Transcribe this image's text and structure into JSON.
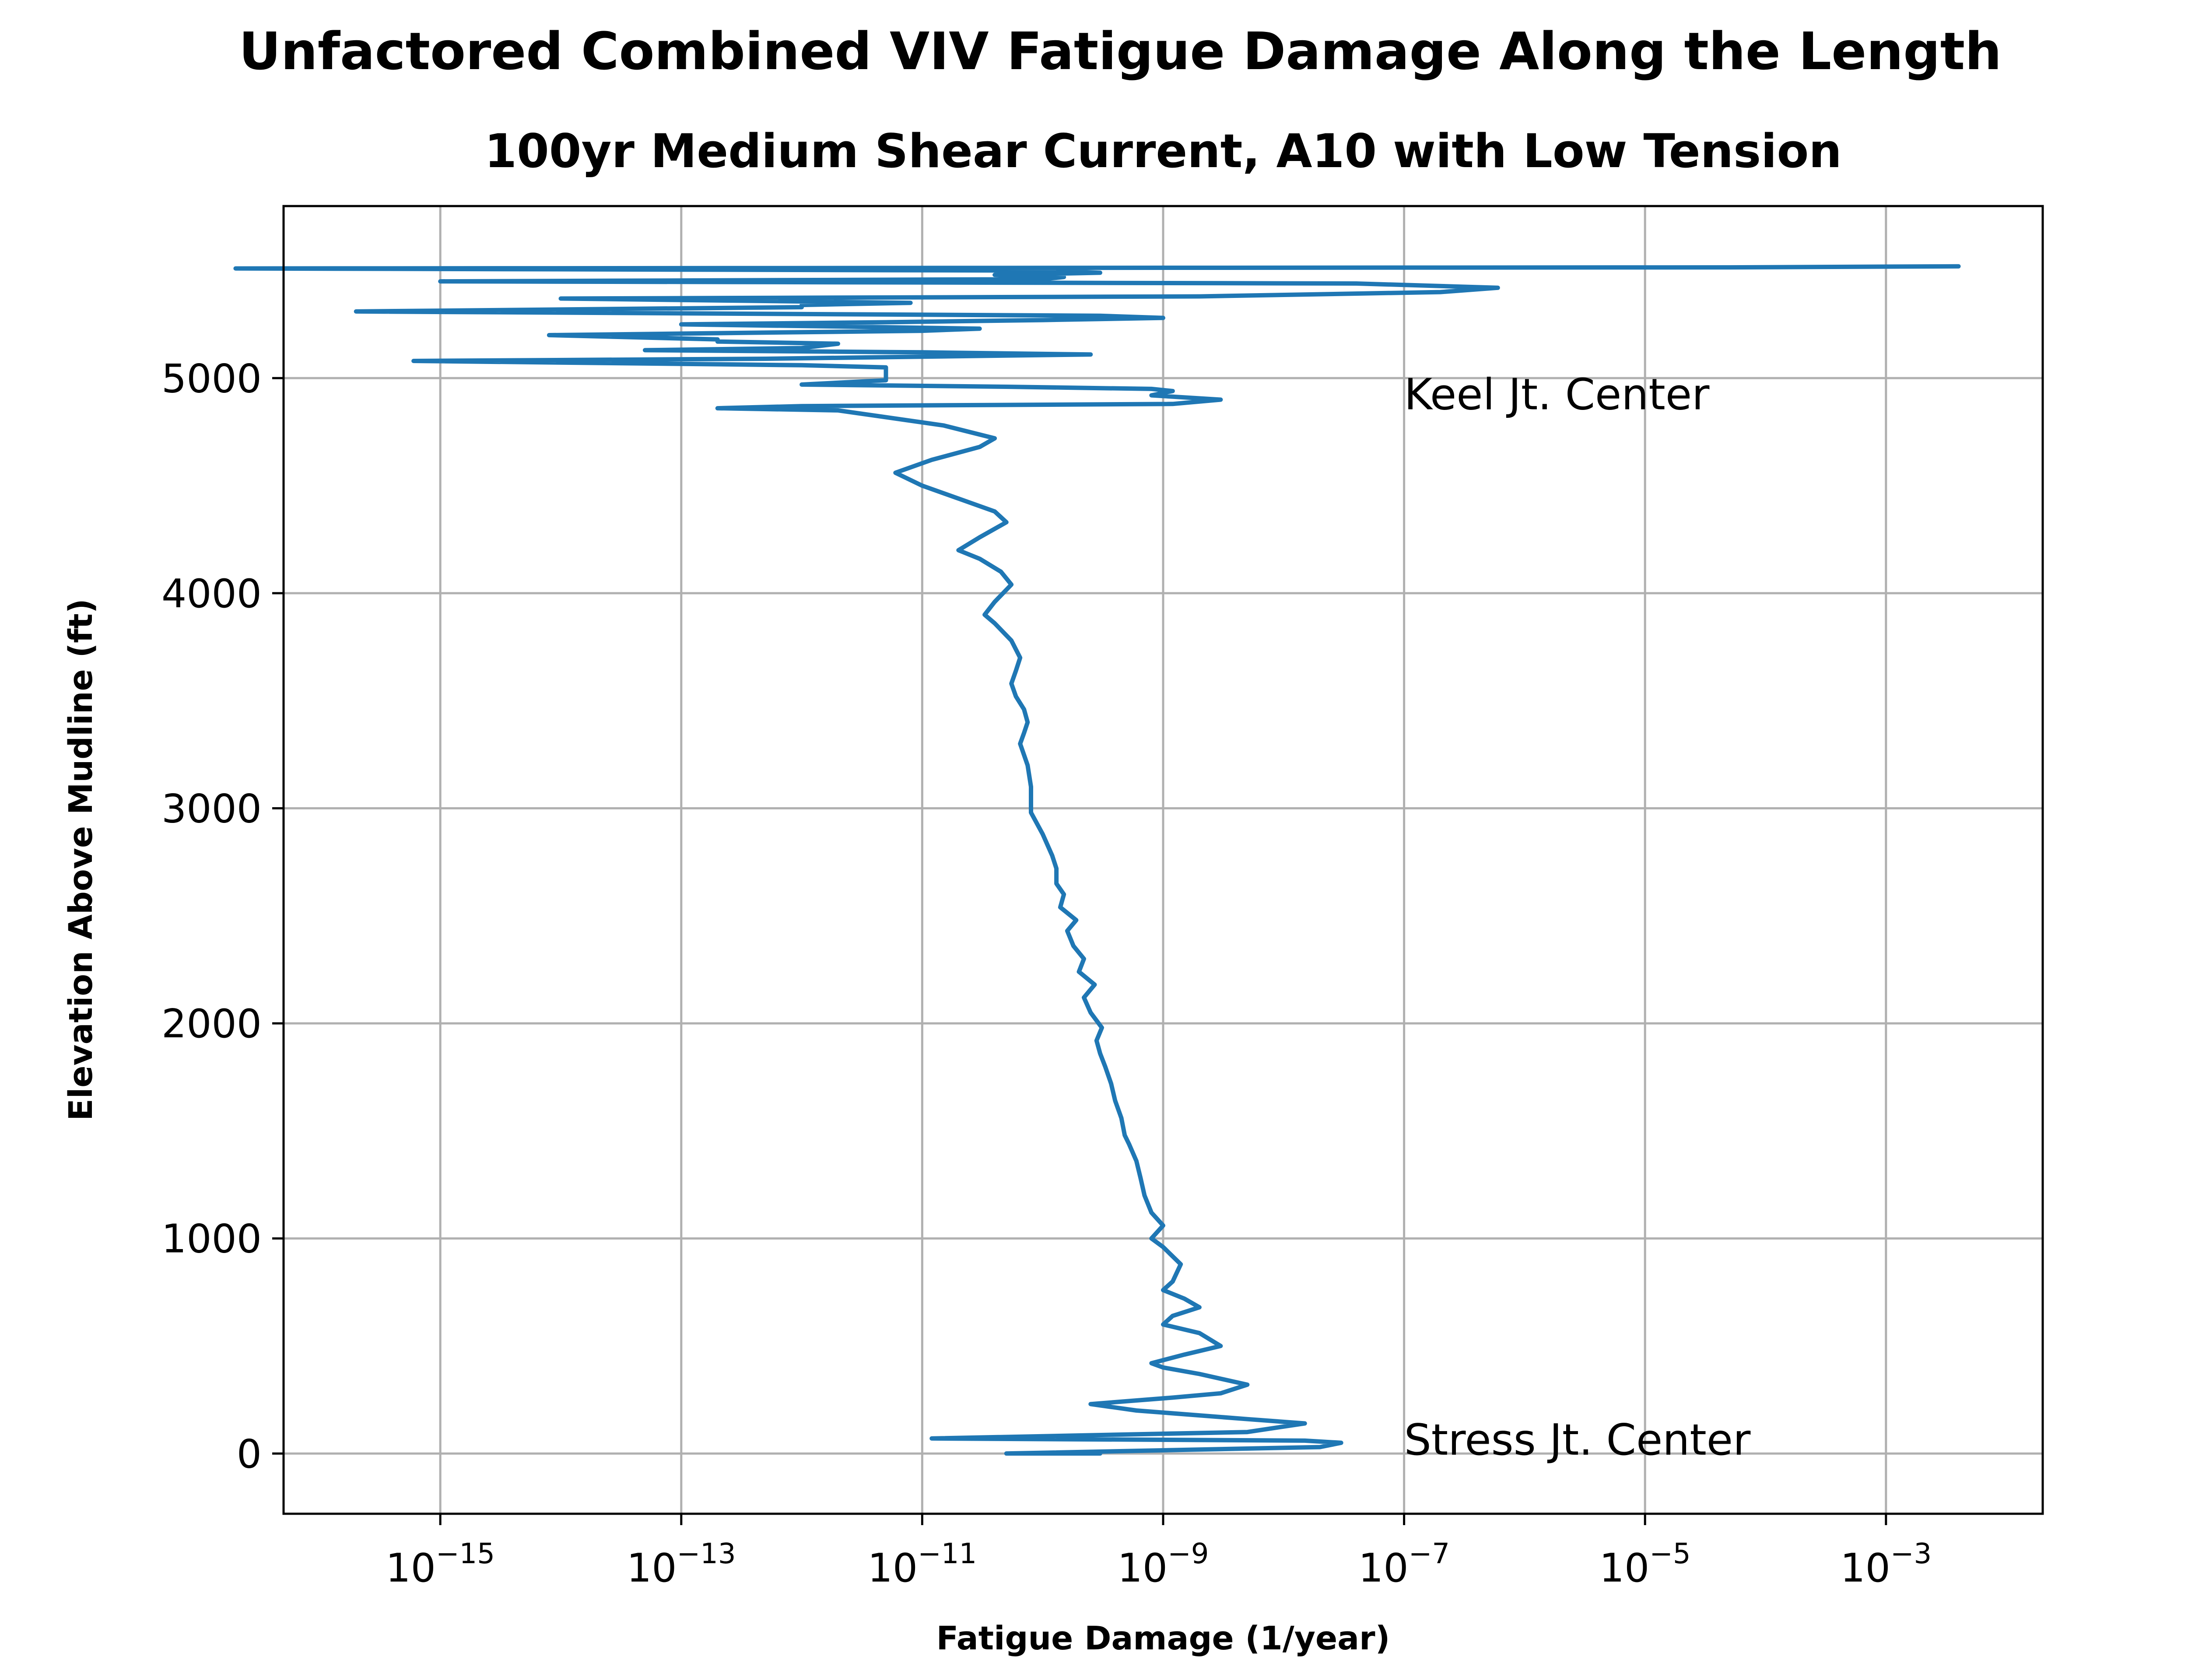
{
  "chart_data": {
    "type": "line",
    "title": "Unfactored Combined VIV Fatigue Damage Along the Length",
    "subtitle": "100yr Medium Shear Current, A10 with Low Tension",
    "xlabel": "Fatigue Damage (1/year)",
    "ylabel": "Elevation Above Mudline (ft)",
    "xscale": "log",
    "xlim": [
      5e-17,
      0.02
    ],
    "ylim": [
      -280,
      5800
    ],
    "x_ticks": [
      {
        "value": 1e-15,
        "base": "10",
        "exp": "−15"
      },
      {
        "value": 1e-13,
        "base": "10",
        "exp": "−13"
      },
      {
        "value": 1e-11,
        "base": "10",
        "exp": "−11"
      },
      {
        "value": 1e-09,
        "base": "10",
        "exp": "−9"
      },
      {
        "value": 1e-07,
        "base": "10",
        "exp": "−7"
      },
      {
        "value": 1e-05,
        "base": "10",
        "exp": "−5"
      },
      {
        "value": 0.001,
        "base": "10",
        "exp": "−3"
      }
    ],
    "y_ticks": [
      {
        "value": 0,
        "label": "0"
      },
      {
        "value": 1000,
        "label": "1000"
      },
      {
        "value": 2000,
        "label": "2000"
      },
      {
        "value": 3000,
        "label": "3000"
      },
      {
        "value": 4000,
        "label": "4000"
      },
      {
        "value": 5000,
        "label": "5000"
      }
    ],
    "grid": true,
    "line_color": "#1f77b4",
    "annotations": [
      {
        "text": "Keel Jt. Center",
        "x": 1e-07,
        "y": 4920
      },
      {
        "text": "Stress Jt. Center",
        "x": 1e-07,
        "y": 60
      }
    ],
    "series": [
      {
        "points": [
          [
            3e-10,
            0
          ],
          [
            5e-11,
            0
          ],
          [
            2e-08,
            30
          ],
          [
            3e-08,
            50
          ],
          [
            1.5e-08,
            60
          ],
          [
            1.2e-11,
            70
          ],
          [
            5e-09,
            100
          ],
          [
            1.5e-08,
            140
          ],
          [
            5e-09,
            160
          ],
          [
            6e-10,
            200
          ],
          [
            2.5e-10,
            230
          ],
          [
            1.2e-09,
            260
          ],
          [
            3e-09,
            280
          ],
          [
            5e-09,
            320
          ],
          [
            2e-09,
            370
          ],
          [
            1e-09,
            400
          ],
          [
            8e-10,
            420
          ],
          [
            1.5e-09,
            460
          ],
          [
            3e-09,
            500
          ],
          [
            2e-09,
            560
          ],
          [
            1e-09,
            600
          ],
          [
            1.2e-09,
            640
          ],
          [
            2e-09,
            680
          ],
          [
            1.5e-09,
            720
          ],
          [
            1e-09,
            760
          ],
          [
            1.2e-09,
            800
          ],
          [
            1.4e-09,
            880
          ],
          [
            1e-09,
            960
          ],
          [
            8e-10,
            1000
          ],
          [
            1e-09,
            1060
          ],
          [
            8e-10,
            1120
          ],
          [
            7e-10,
            1200
          ],
          [
            6.5e-10,
            1280
          ],
          [
            6e-10,
            1360
          ],
          [
            5.2e-10,
            1440
          ],
          [
            4.8e-10,
            1480
          ],
          [
            4.5e-10,
            1560
          ],
          [
            4e-10,
            1640
          ],
          [
            3.7e-10,
            1720
          ],
          [
            3.3e-10,
            1800
          ],
          [
            3e-10,
            1860
          ],
          [
            2.8e-10,
            1920
          ],
          [
            3.1e-10,
            1980
          ],
          [
            2.5e-10,
            2050
          ],
          [
            2.2e-10,
            2120
          ],
          [
            2.7e-10,
            2180
          ],
          [
            2e-10,
            2240
          ],
          [
            2.2e-10,
            2300
          ],
          [
            1.8e-10,
            2360
          ],
          [
            1.6e-10,
            2430
          ],
          [
            1.9e-10,
            2480
          ],
          [
            1.4e-10,
            2540
          ],
          [
            1.5e-10,
            2600
          ],
          [
            1.3e-10,
            2650
          ],
          [
            1.3e-10,
            2720
          ],
          [
            1.2e-10,
            2780
          ],
          [
            1e-10,
            2880
          ],
          [
            8e-11,
            2980
          ],
          [
            8e-11,
            3100
          ],
          [
            7.5e-11,
            3200
          ],
          [
            6.5e-11,
            3300
          ],
          [
            7e-11,
            3350
          ],
          [
            7.5e-11,
            3400
          ],
          [
            7e-11,
            3460
          ],
          [
            6e-11,
            3520
          ],
          [
            5.5e-11,
            3580
          ],
          [
            6e-11,
            3640
          ],
          [
            6.5e-11,
            3700
          ],
          [
            5.5e-11,
            3780
          ],
          [
            4e-11,
            3860
          ],
          [
            3.3e-11,
            3900
          ],
          [
            4e-11,
            3960
          ],
          [
            5.5e-11,
            4040
          ],
          [
            4.5e-11,
            4100
          ],
          [
            3e-11,
            4160
          ],
          [
            2e-11,
            4200
          ],
          [
            3e-11,
            4260
          ],
          [
            5e-11,
            4330
          ],
          [
            4e-11,
            4380
          ],
          [
            2e-11,
            4440
          ],
          [
            1e-11,
            4500
          ],
          [
            6e-12,
            4560
          ],
          [
            1.2e-11,
            4620
          ],
          [
            3e-11,
            4680
          ],
          [
            4e-11,
            4720
          ],
          [
            1.5e-11,
            4780
          ],
          [
            2e-12,
            4850
          ],
          [
            2e-13,
            4860
          ],
          [
            1e-12,
            4870
          ],
          [
            1.2e-09,
            4880
          ],
          [
            3e-09,
            4900
          ],
          [
            8e-10,
            4920
          ],
          [
            1.2e-09,
            4940
          ],
          [
            8e-10,
            4950
          ],
          [
            5e-11,
            4960
          ],
          [
            1e-12,
            4970
          ],
          [
            5e-12,
            4990
          ],
          [
            5e-12,
            5010
          ],
          [
            5e-12,
            5030
          ],
          [
            5e-12,
            5050
          ],
          [
            1e-12,
            5060
          ],
          [
            6e-16,
            5080
          ],
          [
            5e-13,
            5090
          ],
          [
            2.5e-10,
            5110
          ],
          [
            1e-11,
            5120
          ],
          [
            5e-14,
            5130
          ],
          [
            1e-12,
            5140
          ],
          [
            2e-12,
            5160
          ],
          [
            2e-13,
            5170
          ],
          [
            2e-13,
            5180
          ],
          [
            8e-15,
            5200
          ],
          [
            1e-11,
            5220
          ],
          [
            3e-11,
            5230
          ],
          [
            2e-12,
            5240
          ],
          [
            1e-13,
            5250
          ],
          [
            5e-12,
            5260
          ],
          [
            1e-10,
            5270
          ],
          [
            1e-09,
            5280
          ],
          [
            3e-10,
            5290
          ],
          [
            2e-16,
            5310
          ],
          [
            1e-12,
            5330
          ],
          [
            1e-12,
            5340
          ],
          [
            8e-12,
            5350
          ],
          [
            3e-13,
            5360
          ],
          [
            1e-14,
            5370
          ],
          [
            2e-09,
            5380
          ],
          [
            2e-07,
            5400
          ],
          [
            6e-07,
            5420
          ],
          [
            4e-08,
            5440
          ],
          [
            1e-15,
            5450
          ],
          [
            1e-10,
            5460
          ],
          [
            1.5e-10,
            5470
          ],
          [
            4e-11,
            5480
          ],
          [
            3e-10,
            5490
          ],
          [
            1e-10,
            5500
          ],
          [
            2e-17,
            5510
          ],
          [
            5e-05,
            5515
          ],
          [
            0.004,
            5520
          ]
        ]
      }
    ]
  }
}
